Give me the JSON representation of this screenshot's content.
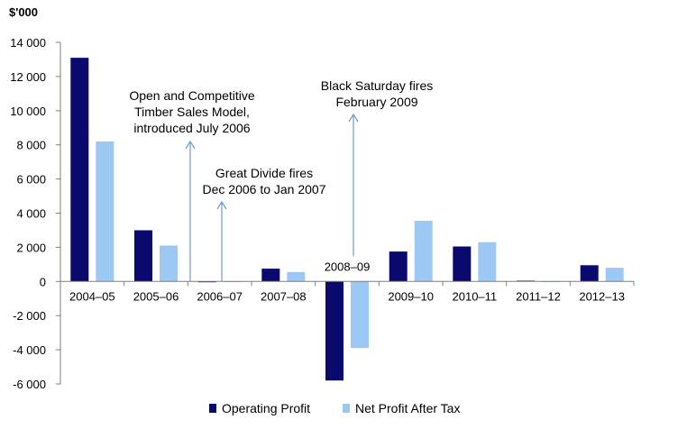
{
  "chart_data": {
    "type": "bar",
    "title": "",
    "ylabel": "$'000",
    "xlabel": "",
    "ylim": [
      -6000,
      14000
    ],
    "yticks": [
      -6000,
      -4000,
      -2000,
      0,
      2000,
      4000,
      6000,
      8000,
      10000,
      12000,
      14000
    ],
    "ytick_labels": [
      "-6 000",
      "-4 000",
      "-2 000",
      "0",
      "2 000",
      "4 000",
      "6 000",
      "8 000",
      "10 000",
      "12 000",
      "14 000"
    ],
    "categories": [
      "2004–05",
      "2005–06",
      "2006–07",
      "2007–08",
      "2008–09",
      "2009–10",
      "2010–11",
      "2011–12",
      "2012–13"
    ],
    "series": [
      {
        "name": "Operating Profit",
        "color": "#0a0a6e",
        "values": [
          13100,
          3000,
          -50,
          750,
          -5800,
          1750,
          2050,
          50,
          950
        ]
      },
      {
        "name": "Net Profit After Tax",
        "color": "#9cc8f4",
        "values": [
          8200,
          2100,
          -30,
          550,
          -3900,
          3550,
          2300,
          -30,
          800
        ]
      }
    ],
    "legend_position": "bottom",
    "grid": false,
    "annotations": [
      {
        "id": "timber",
        "lines": [
          "Open and Competitive",
          "Timber Sales Model,",
          "introduced July 2006"
        ],
        "target_category_index": 2
      },
      {
        "id": "divide",
        "lines": [
          "Great Divide fires",
          "Dec 2006 to Jan 2007"
        ],
        "target_category_index": 2
      },
      {
        "id": "saturday",
        "lines": [
          "Black Saturday fires",
          "February 2009"
        ],
        "target_category_index": 4
      }
    ]
  }
}
